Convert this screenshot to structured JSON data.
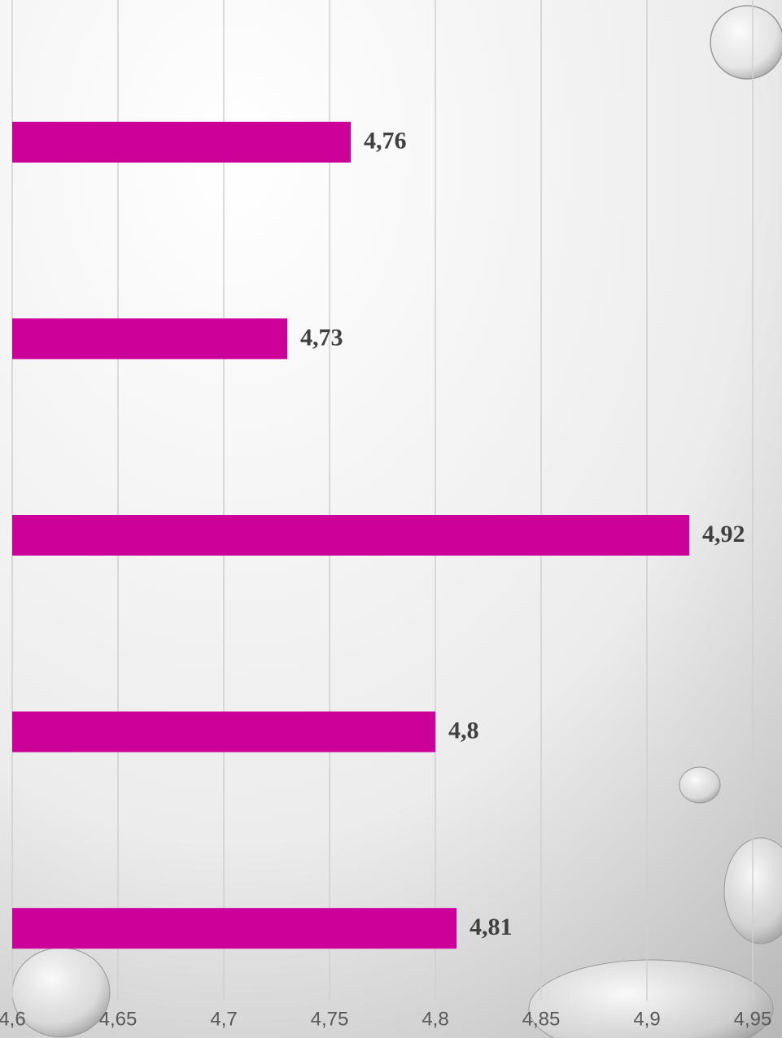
{
  "chart_data": {
    "type": "bar",
    "orientation": "horizontal",
    "categories": [
      null,
      null,
      null,
      null,
      null
    ],
    "values": [
      4.76,
      4.73,
      4.92,
      4.8,
      4.81
    ],
    "value_labels": [
      "4,76",
      "4,73",
      "4,92",
      "4,8",
      "4,81"
    ],
    "color": "#cc0099",
    "xlim": [
      4.6,
      4.95
    ],
    "xticks": [
      {
        "value": 4.6,
        "label": "4,6"
      },
      {
        "value": 4.65,
        "label": "4,65"
      },
      {
        "value": 4.7,
        "label": "4,7"
      },
      {
        "value": 4.75,
        "label": "4,75"
      },
      {
        "value": 4.8,
        "label": "4,8"
      },
      {
        "value": 4.85,
        "label": "4,85"
      },
      {
        "value": 4.9,
        "label": "4,9"
      },
      {
        "value": 4.95,
        "label": "4,95"
      }
    ],
    "grid": true
  }
}
